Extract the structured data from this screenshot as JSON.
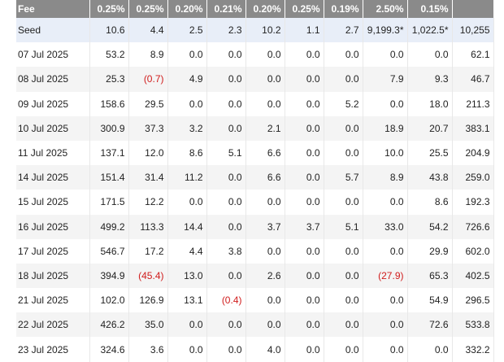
{
  "table": {
    "header": [
      "Fee",
      "0.25%",
      "0.25%",
      "0.20%",
      "0.21%",
      "0.20%",
      "0.25%",
      "0.19%",
      "2.50%",
      "0.15%",
      ""
    ],
    "rows": [
      {
        "label": "Seed",
        "cells": [
          "10.6",
          "4.4",
          "2.5",
          "2.3",
          "10.2",
          "1.1",
          "2.7",
          "9,199.3*",
          "1,022.5*",
          "10,255"
        ],
        "negative": []
      },
      {
        "label": "07 Jul 2025",
        "cells": [
          "53.2",
          "8.9",
          "0.0",
          "0.0",
          "0.0",
          "0.0",
          "0.0",
          "0.0",
          "0.0",
          "62.1"
        ],
        "negative": []
      },
      {
        "label": "08 Jul 2025",
        "cells": [
          "25.3",
          "(0.7)",
          "4.9",
          "0.0",
          "0.0",
          "0.0",
          "0.0",
          "7.9",
          "9.3",
          "46.7"
        ],
        "negative": [
          1
        ]
      },
      {
        "label": "09 Jul 2025",
        "cells": [
          "158.6",
          "29.5",
          "0.0",
          "0.0",
          "0.0",
          "0.0",
          "5.2",
          "0.0",
          "18.0",
          "211.3"
        ],
        "negative": []
      },
      {
        "label": "10 Jul 2025",
        "cells": [
          "300.9",
          "37.3",
          "3.2",
          "0.0",
          "2.1",
          "0.0",
          "0.0",
          "18.9",
          "20.7",
          "383.1"
        ],
        "negative": []
      },
      {
        "label": "11 Jul 2025",
        "cells": [
          "137.1",
          "12.0",
          "8.6",
          "5.1",
          "6.6",
          "0.0",
          "0.0",
          "10.0",
          "25.5",
          "204.9"
        ],
        "negative": []
      },
      {
        "label": "14 Jul 2025",
        "cells": [
          "151.4",
          "31.4",
          "11.2",
          "0.0",
          "6.6",
          "0.0",
          "5.7",
          "8.9",
          "43.8",
          "259.0"
        ],
        "negative": []
      },
      {
        "label": "15 Jul 2025",
        "cells": [
          "171.5",
          "12.2",
          "0.0",
          "0.0",
          "0.0",
          "0.0",
          "0.0",
          "0.0",
          "8.6",
          "192.3"
        ],
        "negative": []
      },
      {
        "label": "16 Jul 2025",
        "cells": [
          "499.2",
          "113.3",
          "14.4",
          "0.0",
          "3.7",
          "3.7",
          "5.1",
          "33.0",
          "54.2",
          "726.6"
        ],
        "negative": []
      },
      {
        "label": "17 Jul 2025",
        "cells": [
          "546.7",
          "17.2",
          "4.4",
          "3.8",
          "0.0",
          "0.0",
          "0.0",
          "0.0",
          "29.9",
          "602.0"
        ],
        "negative": []
      },
      {
        "label": "18 Jul 2025",
        "cells": [
          "394.9",
          "(45.4)",
          "13.0",
          "0.0",
          "2.6",
          "0.0",
          "0.0",
          "(27.9)",
          "65.3",
          "402.5"
        ],
        "negative": [
          1,
          7
        ]
      },
      {
        "label": "21 Jul 2025",
        "cells": [
          "102.0",
          "126.9",
          "13.1",
          "(0.4)",
          "0.0",
          "0.0",
          "0.0",
          "0.0",
          "54.9",
          "296.5"
        ],
        "negative": [
          3
        ]
      },
      {
        "label": "22 Jul 2025",
        "cells": [
          "426.2",
          "35.0",
          "0.0",
          "0.0",
          "0.0",
          "0.0",
          "0.0",
          "0.0",
          "72.6",
          "533.8"
        ],
        "negative": []
      },
      {
        "label": "23 Jul 2025",
        "cells": [
          "324.6",
          "3.6",
          "0.0",
          "0.0",
          "4.0",
          "0.0",
          "0.0",
          "0.0",
          "0.0",
          "332.2"
        ],
        "negative": []
      }
    ]
  },
  "colors": {
    "header_bg": "#8a8a8a",
    "seed_row_bg": "#e8eef8",
    "alt_row_bg": "#f4f4f4",
    "negative_text": "#d01c1c"
  }
}
